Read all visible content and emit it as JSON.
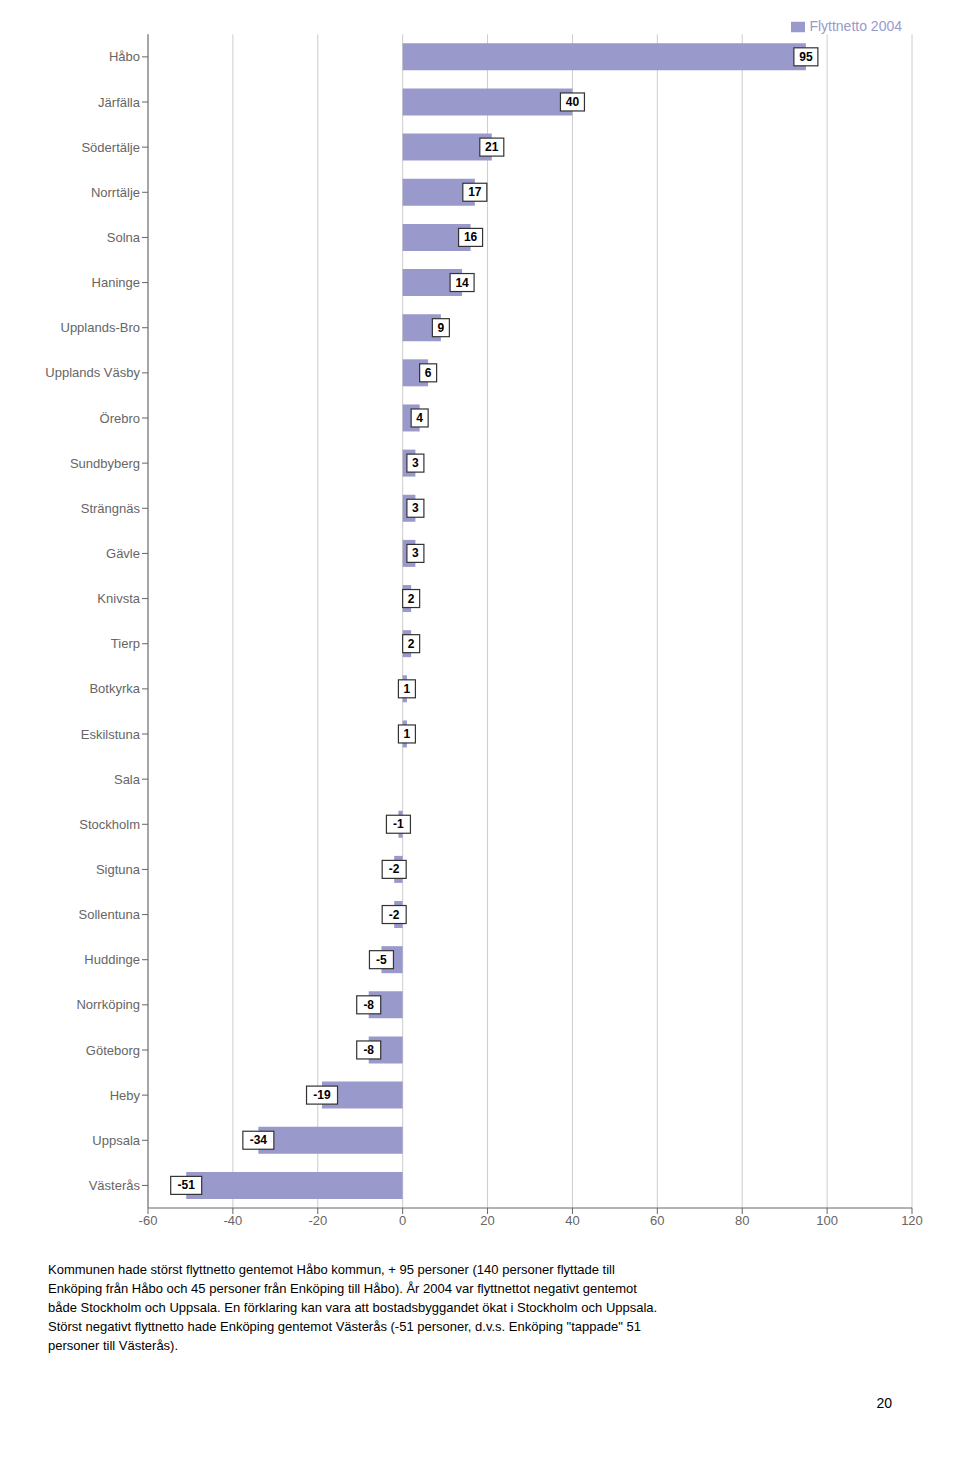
{
  "chart_data": {
    "type": "bar",
    "orientation": "horizontal",
    "categories": [
      "Västerås",
      "Uppsala",
      "Heby",
      "Göteborg",
      "Norrköping",
      "Huddinge",
      "Sollentuna",
      "Sigtuna",
      "Stockholm",
      "Sala",
      "Eskilstuna",
      "Botkyrka",
      "Tierp",
      "Knivsta",
      "Gävle",
      "Strängnäs",
      "Sundbyberg",
      "Örebro",
      "Upplands Väsby",
      "Upplands-Bro",
      "Haninge",
      "Solna",
      "Norrtälje",
      "Södertälje",
      "Järfälla",
      "Håbo"
    ],
    "series": [
      {
        "name": "Flyttnetto 2004",
        "color": "#9999cc",
        "values": [
          -51,
          -34,
          -19,
          -8,
          -8,
          -5,
          -2,
          -2,
          -1,
          0,
          1,
          1,
          2,
          2,
          3,
          3,
          3,
          4,
          6,
          9,
          14,
          16,
          17,
          21,
          40,
          95
        ]
      }
    ],
    "xlim": [
      -60,
      120
    ],
    "xticks": [
      -60,
      -40,
      -20,
      0,
      20,
      40,
      60,
      80,
      100,
      120
    ],
    "grid": true,
    "legend": "upper right",
    "data_labels": true,
    "annotations": [
      "Kommunen hade störst flyttnetto gentemot Håbo kommun, + 95 personer (140 personer flyttade till\nEnköping från Håbo och 45 personer från Enköping till Håbo). År 2004 var flyttnettot negativt gentemot\nbåde Stockholm och Uppsala. En förklaring kan vara att bostadsbyggandet ökat i Stockholm och Uppsala.\nStörst negativt flyttnetto hade Enköping gentemot Västerås (-51 personer, d.v.s. Enköping \"tappade\" 51\npersoner till Västerås).",
      "20"
    ]
  }
}
